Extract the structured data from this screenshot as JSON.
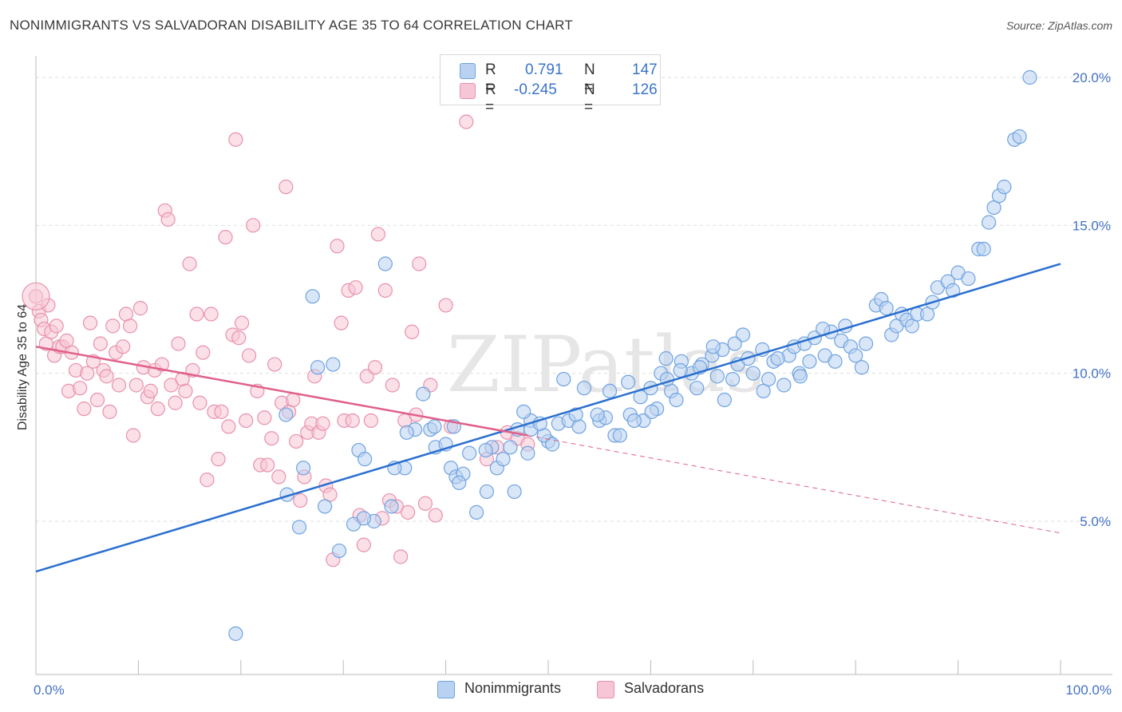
{
  "title": "NONIMMIGRANTS VS SALVADORAN DISABILITY AGE 35 TO 64 CORRELATION CHART",
  "source": "Source: ZipAtlas.com",
  "colors": {
    "blue": "#6fa3e0",
    "blue_fill": "#b9d2f1",
    "blue_line": "#2a6fd0",
    "pink": "#e891ad",
    "pink_fill": "#f7c6d6",
    "pink_line": "#e0608a",
    "tick_text": "#4472c4"
  },
  "legend": {
    "r_label": "R =",
    "n_label": "N =",
    "series": [
      {
        "name": "Nonimmigrants",
        "r": "0.791",
        "n": "147"
      },
      {
        "name": "Salvadorans",
        "r": "-0.245",
        "n": "126"
      }
    ]
  },
  "watermark": "ZIPatlas",
  "chart_data": {
    "type": "scatter",
    "title": "NONIMMIGRANTS VS SALVADORAN DISABILITY AGE 35 TO 64 CORRELATION CHART",
    "xlabel": "",
    "ylabel": "Disability Age 35 to 64",
    "xlim": [
      0,
      100
    ],
    "ylim": [
      0,
      21
    ],
    "x_tick_labels": [
      "0.0%",
      "100.0%"
    ],
    "y_ticks": [
      5,
      10,
      15,
      20
    ],
    "y_tick_labels": [
      "5.0%",
      "10.0%",
      "15.0%",
      "20.0%"
    ],
    "series": [
      {
        "name": "Nonimmigrants",
        "color": "#6fa3e0",
        "trend": {
          "x": [
            0,
            100
          ],
          "y": [
            3.3,
            13.7
          ],
          "style": "solid"
        },
        "points": [
          [
            19.5,
            1.2
          ],
          [
            24.5,
            5.9
          ],
          [
            25.7,
            4.8
          ],
          [
            27,
            12.6
          ],
          [
            24.4,
            8.6
          ],
          [
            26.1,
            6.8
          ],
          [
            28.2,
            5.5
          ],
          [
            27.5,
            10.2
          ],
          [
            29,
            10.3
          ],
          [
            29.6,
            4.0
          ],
          [
            31,
            4.9
          ],
          [
            31.5,
            7.4
          ],
          [
            33,
            5.0
          ],
          [
            32,
            5.1
          ],
          [
            32.1,
            7.1
          ],
          [
            34.1,
            13.7
          ],
          [
            34.7,
            5.5
          ],
          [
            36,
            6.8
          ],
          [
            35,
            6.8
          ],
          [
            37,
            8.1
          ],
          [
            37.8,
            9.3
          ],
          [
            38.5,
            8.1
          ],
          [
            39,
            7.5
          ],
          [
            40,
            7.6
          ],
          [
            40.5,
            6.8
          ],
          [
            40.8,
            8.2
          ],
          [
            41,
            6.5
          ],
          [
            41.7,
            6.6
          ],
          [
            42.3,
            7.3
          ],
          [
            43,
            5.3
          ],
          [
            44,
            6.0
          ],
          [
            45,
            6.8
          ],
          [
            44.5,
            7.5
          ],
          [
            45.6,
            7.1
          ],
          [
            46.3,
            7.5
          ],
          [
            47,
            8.1
          ],
          [
            48,
            7.3
          ],
          [
            48.3,
            8.4
          ],
          [
            50,
            7.7
          ],
          [
            51,
            8.3
          ],
          [
            52,
            8.4
          ],
          [
            51.5,
            9.8
          ],
          [
            53,
            8.2
          ],
          [
            53.5,
            9.5
          ],
          [
            55,
            8.4
          ],
          [
            55.6,
            8.5
          ],
          [
            56,
            9.4
          ],
          [
            56.5,
            7.9
          ],
          [
            57,
            7.9
          ],
          [
            58,
            8.6
          ],
          [
            59,
            9.2
          ],
          [
            59.3,
            8.4
          ],
          [
            60,
            9.5
          ],
          [
            60.6,
            8.8
          ],
          [
            61,
            10.0
          ],
          [
            61.5,
            10.5
          ],
          [
            62,
            9.4
          ],
          [
            62.5,
            9.1
          ],
          [
            63,
            10.4
          ],
          [
            64,
            10.0
          ],
          [
            64.5,
            9.5
          ],
          [
            65,
            10.3
          ],
          [
            66,
            10.6
          ],
          [
            66.5,
            9.9
          ],
          [
            67,
            10.8
          ],
          [
            68,
            9.8
          ],
          [
            68.5,
            10.3
          ],
          [
            69,
            11.3
          ],
          [
            69.5,
            10.5
          ],
          [
            70,
            10.0
          ],
          [
            71,
            9.4
          ],
          [
            71.5,
            9.8
          ],
          [
            72,
            10.4
          ],
          [
            73,
            9.6
          ],
          [
            73.5,
            10.6
          ],
          [
            74,
            10.9
          ],
          [
            74.5,
            10.0
          ],
          [
            75,
            11.0
          ],
          [
            75.5,
            10.4
          ],
          [
            76,
            11.2
          ],
          [
            77,
            10.6
          ],
          [
            77.6,
            11.4
          ],
          [
            78,
            10.4
          ],
          [
            78.6,
            11.1
          ],
          [
            79,
            11.6
          ],
          [
            79.5,
            10.9
          ],
          [
            80,
            10.6
          ],
          [
            80.6,
            10.2
          ],
          [
            81,
            11.0
          ],
          [
            82,
            12.3
          ],
          [
            82.5,
            12.5
          ],
          [
            83,
            12.2
          ],
          [
            83.5,
            11.3
          ],
          [
            84,
            11.6
          ],
          [
            84.5,
            12.0
          ],
          [
            85,
            11.8
          ],
          [
            85.5,
            11.6
          ],
          [
            86,
            12.0
          ],
          [
            87,
            12.0
          ],
          [
            87.5,
            12.4
          ],
          [
            88,
            12.9
          ],
          [
            89,
            13.1
          ],
          [
            89.5,
            12.8
          ],
          [
            90,
            13.4
          ],
          [
            91,
            13.2
          ],
          [
            92,
            14.2
          ],
          [
            92.5,
            14.2
          ],
          [
            93,
            15.1
          ],
          [
            93.5,
            15.6
          ],
          [
            94,
            16.0
          ],
          [
            94.5,
            16.3
          ],
          [
            95.5,
            17.9
          ],
          [
            96,
            18.0
          ],
          [
            97,
            20.0
          ],
          [
            48.3,
            8.1
          ],
          [
            49.6,
            7.9
          ],
          [
            50.4,
            7.6
          ],
          [
            49.2,
            8.3
          ],
          [
            57.8,
            9.7
          ],
          [
            54.8,
            8.6
          ],
          [
            61.6,
            9.8
          ],
          [
            66.1,
            10.9
          ],
          [
            72.4,
            10.5
          ],
          [
            74.6,
            9.9
          ],
          [
            62.9,
            10.1
          ],
          [
            68.2,
            11.0
          ],
          [
            76.8,
            11.5
          ],
          [
            70.9,
            10.8
          ],
          [
            60.1,
            8.7
          ],
          [
            46.7,
            6.0
          ],
          [
            43.9,
            7.4
          ],
          [
            41.3,
            6.3
          ],
          [
            36.2,
            8.0
          ],
          [
            38.9,
            8.2
          ],
          [
            47.6,
            8.7
          ],
          [
            52.7,
            8.6
          ],
          [
            58.4,
            8.4
          ],
          [
            64.8,
            10.2
          ],
          [
            67.2,
            9.1
          ]
        ]
      },
      {
        "name": "Salvadorans",
        "color": "#e891ad",
        "trend": {
          "x": [
            0,
            48
          ],
          "y": [
            10.9,
            7.9
          ],
          "style": "solid"
        },
        "trend_extension": {
          "x": [
            48,
            100
          ],
          "y": [
            7.9,
            4.6
          ],
          "style": "dashed"
        },
        "points": [
          [
            0,
            12.6
          ],
          [
            0.3,
            12.1
          ],
          [
            0.5,
            11.8
          ],
          [
            0.8,
            11.5
          ],
          [
            1,
            11.0
          ],
          [
            1.2,
            12.3
          ],
          [
            1.5,
            11.4
          ],
          [
            1.8,
            10.6
          ],
          [
            2,
            11.6
          ],
          [
            2.3,
            10.9
          ],
          [
            2.6,
            10.9
          ],
          [
            3,
            11.1
          ],
          [
            3.2,
            9.4
          ],
          [
            3.5,
            10.7
          ],
          [
            3.9,
            10.1
          ],
          [
            4.3,
            9.5
          ],
          [
            4.7,
            8.8
          ],
          [
            5,
            10.0
          ],
          [
            5.3,
            11.7
          ],
          [
            5.6,
            10.4
          ],
          [
            6,
            9.1
          ],
          [
            6.3,
            11.0
          ],
          [
            6.6,
            10.1
          ],
          [
            6.9,
            9.9
          ],
          [
            7.2,
            8.7
          ],
          [
            7.5,
            11.6
          ],
          [
            7.8,
            10.7
          ],
          [
            8.1,
            9.6
          ],
          [
            8.5,
            10.9
          ],
          [
            8.8,
            12.0
          ],
          [
            9.2,
            11.6
          ],
          [
            9.5,
            7.9
          ],
          [
            9.8,
            9.6
          ],
          [
            10.2,
            12.2
          ],
          [
            10.5,
            10.2
          ],
          [
            10.9,
            9.2
          ],
          [
            11.2,
            9.4
          ],
          [
            11.6,
            10.1
          ],
          [
            11.9,
            8.8
          ],
          [
            12.3,
            10.3
          ],
          [
            12.6,
            15.5
          ],
          [
            12.9,
            15.2
          ],
          [
            13.2,
            9.6
          ],
          [
            13.6,
            9.0
          ],
          [
            13.9,
            11.0
          ],
          [
            14.3,
            9.8
          ],
          [
            14.6,
            9.4
          ],
          [
            15,
            13.7
          ],
          [
            15.3,
            10.1
          ],
          [
            15.7,
            12.0
          ],
          [
            16.0,
            9.0
          ],
          [
            16.3,
            10.7
          ],
          [
            16.7,
            6.4
          ],
          [
            17.1,
            12.0
          ],
          [
            17.4,
            8.7
          ],
          [
            17.8,
            7.1
          ],
          [
            18.1,
            8.7
          ],
          [
            18.5,
            14.6
          ],
          [
            18.8,
            8.2
          ],
          [
            19.2,
            11.3
          ],
          [
            19.5,
            17.9
          ],
          [
            19.8,
            11.2
          ],
          [
            20.1,
            11.7
          ],
          [
            20.5,
            8.4
          ],
          [
            20.8,
            10.6
          ],
          [
            21.2,
            15.0
          ],
          [
            21.6,
            9.4
          ],
          [
            21.9,
            6.9
          ],
          [
            22.3,
            8.5
          ],
          [
            22.6,
            6.9
          ],
          [
            23,
            7.8
          ],
          [
            23.3,
            10.3
          ],
          [
            23.7,
            6.5
          ],
          [
            24,
            9.0
          ],
          [
            24.4,
            16.3
          ],
          [
            24.7,
            8.7
          ],
          [
            25.1,
            9.1
          ],
          [
            25.4,
            7.7
          ],
          [
            25.8,
            5.7
          ],
          [
            26.2,
            6.5
          ],
          [
            26.5,
            8.0
          ],
          [
            26.9,
            8.3
          ],
          [
            27.2,
            9.9
          ],
          [
            27.6,
            8.0
          ],
          [
            28,
            8.3
          ],
          [
            28.3,
            6.2
          ],
          [
            28.7,
            5.9
          ],
          [
            29.0,
            3.7
          ],
          [
            29.4,
            14.3
          ],
          [
            29.8,
            11.7
          ],
          [
            30.1,
            8.4
          ],
          [
            30.5,
            12.8
          ],
          [
            30.9,
            8.4
          ],
          [
            31.2,
            12.9
          ],
          [
            31.6,
            5.2
          ],
          [
            32,
            4.2
          ],
          [
            32.3,
            9.9
          ],
          [
            32.7,
            8.4
          ],
          [
            33.1,
            10.2
          ],
          [
            33.4,
            14.7
          ],
          [
            33.8,
            5.1
          ],
          [
            34.1,
            12.8
          ],
          [
            34.5,
            5.7
          ],
          [
            34.8,
            9.6
          ],
          [
            35.2,
            5.5
          ],
          [
            35.6,
            3.8
          ],
          [
            36.0,
            8.4
          ],
          [
            36.3,
            5.3
          ],
          [
            36.7,
            11.4
          ],
          [
            37.1,
            8.6
          ],
          [
            37.4,
            13.7
          ],
          [
            38,
            5.6
          ],
          [
            38.5,
            9.6
          ],
          [
            39,
            5.2
          ],
          [
            40,
            12.3
          ],
          [
            40.5,
            8.2
          ],
          [
            42,
            18.5
          ],
          [
            44,
            7.1
          ],
          [
            45,
            7.5
          ],
          [
            46,
            8.0
          ],
          [
            47,
            7.8
          ],
          [
            48,
            7.6
          ]
        ]
      }
    ]
  }
}
